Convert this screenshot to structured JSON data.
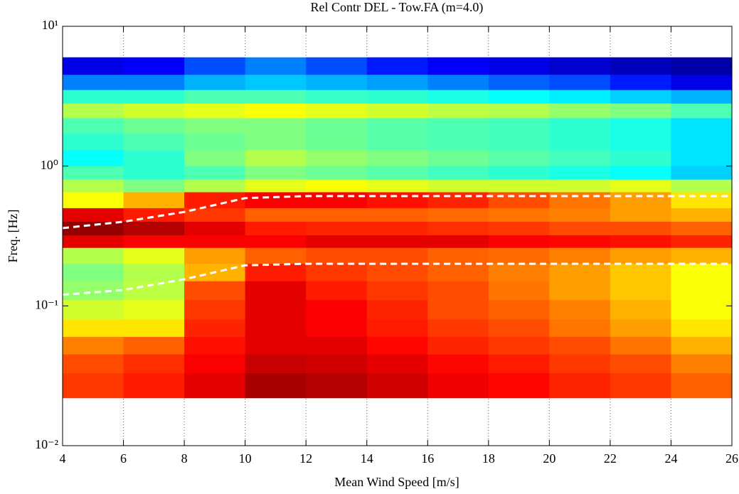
{
  "chart_data": {
    "type": "heatmap",
    "title": "Rel Contr DEL - Tow.FA (m=4.0)",
    "xlabel": "Mean Wind Speed [m/s]",
    "ylabel": "Freq. [Hz]",
    "xlim": [
      4,
      26
    ],
    "xticks": [
      4,
      6,
      8,
      10,
      12,
      14,
      16,
      18,
      20,
      22,
      24,
      26
    ],
    "ylim": [
      0.01,
      10
    ],
    "yscale": "log",
    "yticks": [
      {
        "value": 0.01,
        "label": "10⁻²"
      },
      {
        "value": 0.1,
        "label": "10⁻¹"
      },
      {
        "value": 1,
        "label": "10⁰"
      },
      {
        "value": 10,
        "label": "10¹"
      }
    ],
    "grid": true,
    "colormap": "jet",
    "zlim": [
      0,
      1
    ],
    "x_edges": [
      4,
      6,
      8,
      10,
      12,
      14,
      16,
      18,
      20,
      22,
      24,
      26
    ],
    "y_edges": [
      6,
      4.5,
      3.5,
      2.8,
      2.2,
      1.7,
      1.3,
      1.0,
      0.8,
      0.65,
      0.5,
      0.4,
      0.32,
      0.26,
      0.2,
      0.15,
      0.11,
      0.08,
      0.06,
      0.045,
      0.033,
      0.022
    ],
    "z": [
      [
        0.1,
        0.12,
        0.2,
        0.25,
        0.2,
        0.15,
        0.12,
        0.1,
        0.08,
        0.06,
        0.04
      ],
      [
        0.25,
        0.25,
        0.3,
        0.32,
        0.3,
        0.28,
        0.25,
        0.22,
        0.2,
        0.15,
        0.1
      ],
      [
        0.42,
        0.42,
        0.45,
        0.45,
        0.43,
        0.42,
        0.4,
        0.38,
        0.36,
        0.33,
        0.3
      ],
      [
        0.55,
        0.58,
        0.6,
        0.62,
        0.6,
        0.58,
        0.56,
        0.55,
        0.52,
        0.5,
        0.45
      ],
      [
        0.45,
        0.48,
        0.5,
        0.5,
        0.48,
        0.46,
        0.45,
        0.44,
        0.42,
        0.4,
        0.35
      ],
      [
        0.42,
        0.45,
        0.48,
        0.5,
        0.48,
        0.46,
        0.45,
        0.44,
        0.42,
        0.4,
        0.35
      ],
      [
        0.38,
        0.42,
        0.5,
        0.55,
        0.52,
        0.5,
        0.48,
        0.46,
        0.44,
        0.42,
        0.35
      ],
      [
        0.45,
        0.42,
        0.45,
        0.5,
        0.48,
        0.46,
        0.44,
        0.42,
        0.4,
        0.38,
        0.33
      ],
      [
        0.55,
        0.5,
        0.55,
        0.6,
        0.62,
        0.6,
        0.58,
        0.58,
        0.58,
        0.6,
        0.55
      ],
      [
        0.62,
        0.7,
        0.85,
        0.88,
        0.88,
        0.86,
        0.84,
        0.8,
        0.76,
        0.72,
        0.65
      ],
      [
        0.9,
        0.85,
        0.82,
        0.78,
        0.78,
        0.78,
        0.77,
        0.76,
        0.75,
        0.72,
        0.7
      ],
      [
        0.98,
        0.95,
        0.9,
        0.85,
        0.84,
        0.84,
        0.83,
        0.82,
        0.8,
        0.8,
        0.78
      ],
      [
        0.9,
        0.88,
        0.88,
        0.88,
        0.9,
        0.9,
        0.9,
        0.88,
        0.87,
        0.86,
        0.84
      ],
      [
        0.55,
        0.6,
        0.72,
        0.78,
        0.8,
        0.8,
        0.78,
        0.77,
        0.75,
        0.72,
        0.7
      ],
      [
        0.5,
        0.55,
        0.7,
        0.85,
        0.82,
        0.8,
        0.78,
        0.75,
        0.72,
        0.68,
        0.62
      ],
      [
        0.52,
        0.56,
        0.8,
        0.9,
        0.85,
        0.82,
        0.8,
        0.76,
        0.72,
        0.68,
        0.62
      ],
      [
        0.58,
        0.6,
        0.82,
        0.9,
        0.88,
        0.84,
        0.8,
        0.78,
        0.75,
        0.7,
        0.62
      ],
      [
        0.65,
        0.65,
        0.84,
        0.9,
        0.88,
        0.85,
        0.82,
        0.8,
        0.76,
        0.72,
        0.65
      ],
      [
        0.75,
        0.78,
        0.86,
        0.9,
        0.9,
        0.87,
        0.84,
        0.82,
        0.8,
        0.76,
        0.7
      ],
      [
        0.8,
        0.83,
        0.88,
        0.93,
        0.92,
        0.9,
        0.87,
        0.85,
        0.82,
        0.8,
        0.75
      ],
      [
        0.82,
        0.85,
        0.9,
        0.96,
        0.95,
        0.92,
        0.89,
        0.87,
        0.84,
        0.82,
        0.78
      ]
    ],
    "lines": [
      {
        "color": "#ffffff",
        "x": [
          4,
          6,
          8,
          10,
          12,
          26
        ],
        "values": [
          0.36,
          0.4,
          0.47,
          0.59,
          0.61,
          0.61
        ]
      },
      {
        "color": "#ffffff",
        "x": [
          4,
          6,
          8,
          10,
          12,
          26
        ],
        "values": [
          0.12,
          0.13,
          0.155,
          0.195,
          0.2,
          0.2
        ]
      }
    ]
  }
}
